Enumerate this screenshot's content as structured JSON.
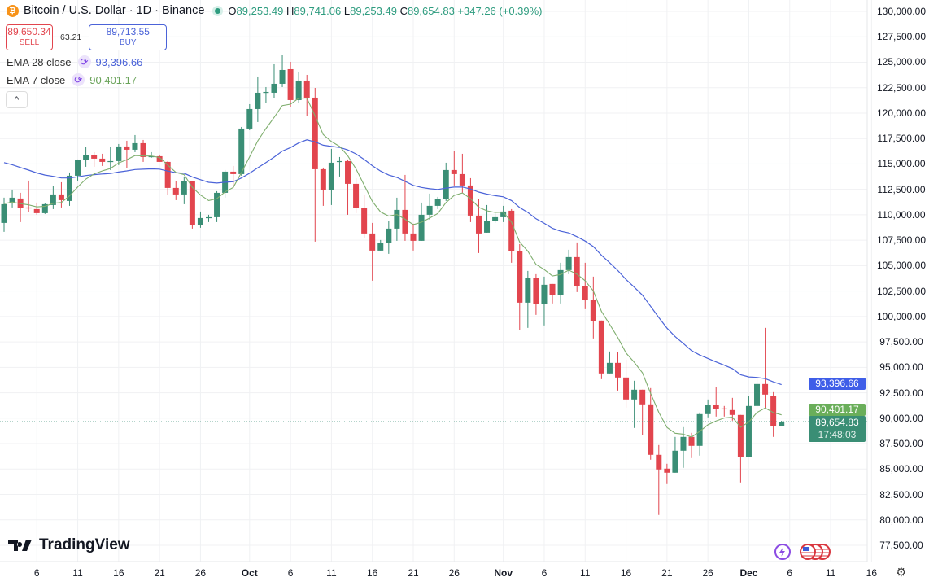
{
  "header": {
    "symbol": "Bitcoin / U.S. Dollar · 1D · Binance",
    "coin_icon": "bitcoin-icon",
    "o_label": "O",
    "open": "89,253.49",
    "h_label": "H",
    "high": "89,741.06",
    "l_label": "L",
    "low": "89,253.49",
    "c_label": "C",
    "close": "89,654.83",
    "change": "+347.26 (+0.39%)"
  },
  "trade": {
    "sell_price": "89,650.34",
    "sell_label": "SELL",
    "spread": "63.21",
    "buy_price": "89,713.55",
    "buy_label": "BUY"
  },
  "indicators": [
    {
      "label": "EMA 28 close",
      "value": "93,396.66",
      "color": "#4b63d8"
    },
    {
      "label": "EMA 7 close",
      "value": "90,401.17",
      "color": "#6aa35a"
    }
  ],
  "collapse_label": "^",
  "branding": {
    "logo": "TradingView"
  },
  "badges": {
    "ema28": "93,396.66",
    "ema7": "90,401.17",
    "last_price": "89,654.83",
    "countdown": "17:48:03"
  },
  "colors": {
    "up": "#3a8e75",
    "down": "#e2454e",
    "ema28": "#4b63d8",
    "ema7": "#7fae6e",
    "grid": "#f0f1f3"
  },
  "chart_data": {
    "type": "candlestick",
    "title": "Bitcoin / U.S. Dollar · 1D · Binance",
    "ylim": [
      77500,
      130000
    ],
    "grid": true,
    "y_ticks": [
      "130,000.00",
      "127,500.00",
      "125,000.00",
      "122,500.00",
      "120,000.00",
      "117,500.00",
      "115,000.00",
      "112,500.00",
      "110,000.00",
      "107,500.00",
      "105,000.00",
      "102,500.00",
      "100,000.00",
      "97,500.00",
      "95,000.00",
      "92,500.00",
      "90,000.00",
      "87,500.00",
      "85,000.00",
      "82,500.00",
      "80,000.00",
      "77,500.00"
    ],
    "x_ticks": [
      {
        "label": "6",
        "date": "Sep 6"
      },
      {
        "label": "11",
        "date": "Sep 11"
      },
      {
        "label": "16",
        "date": "Sep 16"
      },
      {
        "label": "21",
        "date": "Sep 21"
      },
      {
        "label": "26",
        "date": "Sep 26"
      },
      {
        "label": "Oct",
        "date": "Oct 1"
      },
      {
        "label": "6",
        "date": "Oct 6"
      },
      {
        "label": "11",
        "date": "Oct 11"
      },
      {
        "label": "16",
        "date": "Oct 16"
      },
      {
        "label": "21",
        "date": "Oct 21"
      },
      {
        "label": "26",
        "date": "Oct 26"
      },
      {
        "label": "Nov",
        "date": "Nov 1"
      },
      {
        "label": "6",
        "date": "Nov 6"
      },
      {
        "label": "11",
        "date": "Nov 11"
      },
      {
        "label": "16",
        "date": "Nov 16"
      },
      {
        "label": "21",
        "date": "Nov 21"
      },
      {
        "label": "26",
        "date": "Nov 26"
      },
      {
        "label": "Dec",
        "date": "Dec 1"
      },
      {
        "label": "6",
        "date": "Dec 6"
      },
      {
        "label": "11",
        "date": "Dec 11"
      },
      {
        "label": "16",
        "date": "Dec 16"
      }
    ],
    "ohlc": [
      [
        109200,
        111680,
        108320,
        111040
      ],
      [
        111120,
        112480,
        110720,
        111680
      ],
      [
        111600,
        112160,
        109280,
        110640
      ],
      [
        110720,
        113360,
        110240,
        110640
      ],
      [
        110560,
        111200,
        110000,
        110160
      ],
      [
        110160,
        111120,
        110080,
        111040
      ],
      [
        110960,
        112800,
        110560,
        112000
      ],
      [
        112000,
        113200,
        110720,
        111440
      ],
      [
        111360,
        114160,
        110880,
        113840
      ],
      [
        113840,
        115440,
        113360,
        115360
      ],
      [
        115360,
        116640,
        114720,
        115840
      ],
      [
        115840,
        116160,
        114720,
        115520
      ],
      [
        115520,
        116000,
        114800,
        115200
      ],
      [
        115200,
        116640,
        114400,
        115280
      ],
      [
        115280,
        116960,
        114880,
        116720
      ],
      [
        116720,
        117280,
        114560,
        116400
      ],
      [
        116400,
        117840,
        116160,
        117040
      ],
      [
        117040,
        117360,
        115200,
        115680
      ],
      [
        115680,
        116160,
        115600,
        115760
      ],
      [
        115760,
        115920,
        115200,
        115200
      ],
      [
        115200,
        115280,
        111920,
        112640
      ],
      [
        112640,
        113280,
        111440,
        112000
      ],
      [
        112000,
        113760,
        111040,
        113280
      ],
      [
        113280,
        113280,
        108640,
        108960
      ],
      [
        108960,
        110320,
        108720,
        109680
      ],
      [
        109680,
        110000,
        109280,
        109760
      ],
      [
        109760,
        112320,
        109280,
        112160
      ],
      [
        112160,
        114400,
        111680,
        114240
      ],
      [
        114240,
        114800,
        112640,
        114000
      ],
      [
        114000,
        118640,
        113840,
        118480
      ],
      [
        118480,
        120880,
        118320,
        120400
      ],
      [
        120400,
        123600,
        119120,
        122000
      ],
      [
        122000,
        122560,
        120960,
        122080
      ],
      [
        122000,
        124800,
        121440,
        122880
      ],
      [
        122880,
        125680,
        122560,
        124240
      ],
      [
        124320,
        125040,
        120560,
        121280
      ],
      [
        121280,
        124080,
        120960,
        123200
      ],
      [
        123200,
        123760,
        119680,
        121520
      ],
      [
        121520,
        122480,
        107360,
        114480
      ],
      [
        114480,
        114640,
        110880,
        112400
      ],
      [
        112400,
        116480,
        110960,
        115120
      ],
      [
        115200,
        115680,
        113760,
        115280
      ],
      [
        115280,
        115440,
        110000,
        113040
      ],
      [
        113040,
        113600,
        110160,
        110640
      ],
      [
        110640,
        111920,
        107680,
        108160
      ],
      [
        108160,
        109200,
        103520,
        106480
      ],
      [
        106480,
        107520,
        106480,
        107200
      ],
      [
        107200,
        109360,
        106160,
        108640
      ],
      [
        108640,
        111680,
        107440,
        110480
      ],
      [
        110480,
        113920,
        107440,
        108160
      ],
      [
        108160,
        109120,
        106480,
        107440
      ],
      [
        107440,
        111200,
        107440,
        110000
      ],
      [
        110000,
        112080,
        109520,
        110880
      ],
      [
        110880,
        111760,
        110560,
        111520
      ],
      [
        111520,
        115120,
        111360,
        114400
      ],
      [
        114400,
        116240,
        112880,
        114000
      ],
      [
        114000,
        116000,
        112160,
        112880
      ],
      [
        112880,
        113600,
        109280,
        109920
      ],
      [
        109920,
        111520,
        106240,
        108160
      ],
      [
        108240,
        110960,
        108240,
        109360
      ],
      [
        109360,
        110160,
        109200,
        109760
      ],
      [
        109760,
        110880,
        109280,
        110320
      ],
      [
        110400,
        110560,
        105280,
        106400
      ],
      [
        106400,
        107120,
        98640,
        101360
      ],
      [
        101360,
        104480,
        98880,
        103760
      ],
      [
        103760,
        104160,
        100160,
        101200
      ],
      [
        101200,
        103920,
        99120,
        103120
      ],
      [
        103200,
        103200,
        101280,
        102080
      ],
      [
        102080,
        105280,
        101280,
        104560
      ],
      [
        104560,
        106560,
        104160,
        105840
      ],
      [
        105840,
        107280,
        102400,
        102960
      ],
      [
        102960,
        105280,
        100720,
        101600
      ],
      [
        101600,
        103920,
        97840,
        99520
      ],
      [
        99600,
        99600,
        93840,
        94400
      ],
      [
        94400,
        96560,
        94400,
        95440
      ],
      [
        95440,
        96480,
        92720,
        94000
      ],
      [
        94000,
        95760,
        91040,
        91840
      ],
      [
        91840,
        93680,
        89040,
        92800
      ],
      [
        92800,
        92800,
        88320,
        91360
      ],
      [
        91360,
        92960,
        85920,
        86400
      ],
      [
        86400,
        87360,
        80480,
        84960
      ],
      [
        85040,
        85520,
        83520,
        84640
      ],
      [
        84640,
        88160,
        84640,
        86800
      ],
      [
        86800,
        89120,
        85120,
        88160
      ],
      [
        88160,
        88560,
        86080,
        87280
      ],
      [
        87280,
        90560,
        86320,
        90400
      ],
      [
        90400,
        91840,
        90080,
        91280
      ],
      [
        91280,
        93040,
        90160,
        90880
      ],
      [
        90960,
        91200,
        90160,
        90880
      ],
      [
        90800,
        92000,
        89760,
        90320
      ],
      [
        90320,
        90320,
        83680,
        86160
      ],
      [
        86160,
        92160,
        86160,
        91200
      ],
      [
        91200,
        94080,
        90960,
        93360
      ],
      [
        93360,
        98880,
        90960,
        92320
      ],
      [
        92160,
        92560,
        88160,
        89200
      ],
      [
        89253.49,
        89741.06,
        89253.49,
        89654.83
      ]
    ],
    "series": [
      {
        "name": "EMA 28 close",
        "type": "ema",
        "period": 28,
        "last": 93396.66
      },
      {
        "name": "EMA 7 close",
        "type": "ema",
        "period": 7,
        "last": 90401.17
      }
    ],
    "last_price": 89654.83
  },
  "bottom_icons": [
    "lightning-icon",
    "us-flag-icon",
    "us-flag-icon",
    "us-flag-icon"
  ],
  "settings_icon": "gear-icon"
}
